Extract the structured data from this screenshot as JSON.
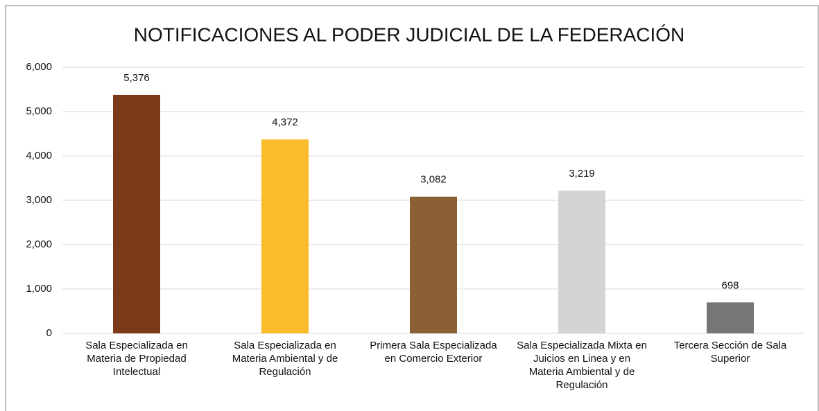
{
  "chart_data": {
    "type": "bar",
    "title": "NOTIFICACIONES AL PODER JUDICIAL DE LA FEDERACIÓN",
    "categories": [
      "Sala Especializada en Materia de Propiedad Intelectual",
      "Sala Especializada en Materia Ambiental y de Regulación",
      "Primera Sala Especializada en Comercio Exterior",
      "Sala Especializada Mixta en Juicios en Linea y en Materia Ambiental y de Regulación",
      "Tercera Sección de Sala Superior"
    ],
    "values": [
      5376,
      4372,
      3082,
      3219,
      698
    ],
    "value_labels": [
      "5,376",
      "4,372",
      "3,082",
      "3,219",
      "698"
    ],
    "colors": [
      "#7a3a18",
      "#fbbc2c",
      "#8d5f35",
      "#d4d4d4",
      "#767676"
    ],
    "ylim": [
      0,
      6000
    ],
    "yticks": [
      0,
      {
        "value": 1000,
        "label": "1,000"
      },
      {
        "value": 2000,
        "label": "2,000"
      },
      {
        "value": 3000,
        "label": "3,000"
      },
      {
        "value": 4000,
        "label": "4,000"
      },
      {
        "value": 5000,
        "label": "5,000"
      },
      {
        "value": 6000,
        "label": "6,000"
      }
    ],
    "grid": true
  }
}
